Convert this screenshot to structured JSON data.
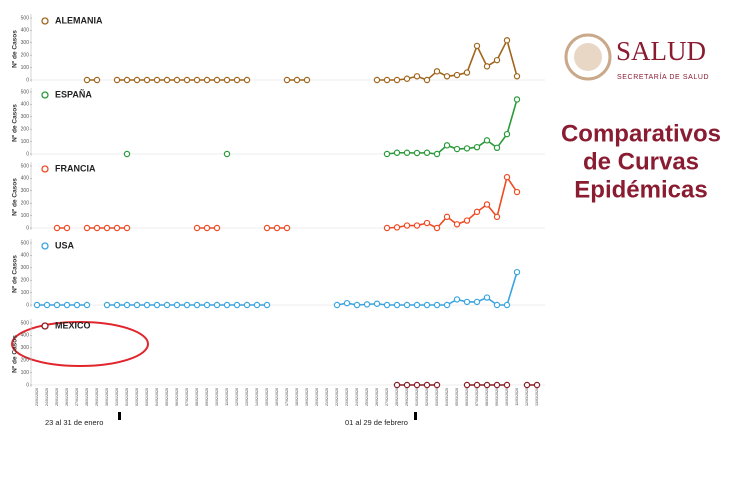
{
  "chart_data": [
    {
      "type": "line",
      "ylabel": "Nº de Casos",
      "ylim": [
        0,
        500
      ],
      "yticks": [
        0,
        100,
        200,
        300,
        400,
        500
      ],
      "series": [
        {
          "name": "ALEMANIA",
          "color": "#a0651c",
          "values": [
            null,
            null,
            null,
            null,
            null,
            0,
            0,
            null,
            0,
            0,
            0,
            0,
            0,
            0,
            0,
            0,
            0,
            0,
            0,
            0,
            0,
            0,
            null,
            null,
            null,
            0,
            0,
            0,
            null,
            null,
            null,
            null,
            null,
            null,
            0,
            0,
            0,
            10,
            30,
            0,
            70,
            30,
            40,
            60,
            275,
            110,
            160,
            320,
            30,
            null,
            null
          ]
        }
      ]
    },
    {
      "type": "line",
      "ylabel": "Nº de Casos",
      "ylim": [
        0,
        500
      ],
      "yticks": [
        0,
        100,
        200,
        300,
        400,
        500
      ],
      "series": [
        {
          "name": "ESPAÑA",
          "color": "#2a9a3a",
          "values": [
            null,
            null,
            null,
            null,
            null,
            null,
            null,
            null,
            null,
            0,
            null,
            null,
            null,
            null,
            null,
            null,
            null,
            null,
            null,
            0,
            null,
            null,
            null,
            null,
            null,
            null,
            null,
            null,
            null,
            null,
            null,
            null,
            null,
            null,
            null,
            0,
            10,
            10,
            8,
            10,
            0,
            70,
            40,
            45,
            55,
            110,
            50,
            160,
            440,
            null,
            null
          ]
        }
      ]
    },
    {
      "type": "line",
      "ylabel": "Nº de Casos",
      "ylim": [
        0,
        500
      ],
      "yticks": [
        0,
        100,
        200,
        300,
        400,
        500
      ],
      "series": [
        {
          "name": "FRANCIA",
          "color": "#f04a23",
          "values": [
            null,
            null,
            0,
            0,
            null,
            0,
            0,
            0,
            0,
            0,
            null,
            null,
            null,
            null,
            null,
            null,
            0,
            0,
            0,
            null,
            null,
            null,
            null,
            0,
            0,
            0,
            null,
            null,
            null,
            null,
            null,
            null,
            null,
            null,
            null,
            0,
            5,
            20,
            20,
            40,
            0,
            90,
            30,
            60,
            130,
            190,
            90,
            410,
            290,
            null,
            null
          ]
        }
      ]
    },
    {
      "type": "line",
      "ylabel": "Nº de Casos",
      "ylim": [
        0,
        500
      ],
      "yticks": [
        0,
        100,
        200,
        300,
        400,
        500
      ],
      "series": [
        {
          "name": "USA",
          "color": "#3aa4e0",
          "values": [
            0,
            0,
            0,
            0,
            0,
            0,
            null,
            0,
            0,
            0,
            0,
            0,
            0,
            0,
            0,
            0,
            0,
            0,
            0,
            0,
            0,
            0,
            0,
            0,
            null,
            null,
            null,
            null,
            null,
            null,
            0,
            15,
            0,
            5,
            10,
            0,
            0,
            0,
            0,
            0,
            0,
            0,
            45,
            25,
            25,
            60,
            0,
            0,
            265,
            null,
            null
          ]
        }
      ]
    },
    {
      "type": "line",
      "ylabel": "Nº de Casos",
      "ylim": [
        0,
        500
      ],
      "yticks": [
        0,
        100,
        200,
        300,
        400,
        500
      ],
      "series": [
        {
          "name": "MEXICO",
          "color": "#8a1c24",
          "values": [
            null,
            null,
            null,
            null,
            null,
            null,
            null,
            null,
            null,
            null,
            null,
            null,
            null,
            null,
            null,
            null,
            null,
            null,
            null,
            null,
            null,
            null,
            null,
            null,
            null,
            null,
            null,
            null,
            null,
            null,
            null,
            null,
            null,
            null,
            null,
            null,
            0,
            0,
            0,
            0,
            0,
            null,
            null,
            0,
            0,
            0,
            0,
            0,
            null,
            0,
            0
          ]
        }
      ],
      "categories": [
        "23/01/2020",
        "24/01/2020",
        "25/01/2020",
        "26/01/2020",
        "27/01/2020",
        "28/01/2020",
        "29/01/2020",
        "30/01/2020",
        "31/01/2020",
        "01/02/2020",
        "02/02/2020",
        "03/02/2020",
        "04/02/2020",
        "05/02/2020",
        "06/02/2020",
        "07/02/2020",
        "08/02/2020",
        "09/02/2020",
        "10/02/2020",
        "11/02/2020",
        "12/02/2020",
        "13/02/2020",
        "14/02/2020",
        "15/02/2020",
        "16/02/2020",
        "17/02/2020",
        "18/02/2020",
        "19/02/2020",
        "20/02/2020",
        "21/02/2020",
        "22/02/2020",
        "23/02/2020",
        "24/02/2020",
        "25/02/2020",
        "26/02/2020",
        "27/02/2020",
        "28/02/2020",
        "29/02/2020",
        "01/03/2020",
        "02/03/2020",
        "03/03/2020",
        "04/03/2020",
        "05/03/2020",
        "06/03/2020",
        "07/03/2020",
        "08/03/2020",
        "09/03/2020",
        "10/03/2020",
        "11/03/2020",
        "12/03/2020",
        "13/03/2020"
      ],
      "annotations": [
        "23 al 31 de enero",
        "01 al 29 de febrero"
      ]
    }
  ],
  "header": {
    "title": "SALUD",
    "subtitle": "SECRETARÍA DE SALUD"
  },
  "heading": [
    "Comparativos",
    "de Curvas",
    "Epidémicas"
  ]
}
